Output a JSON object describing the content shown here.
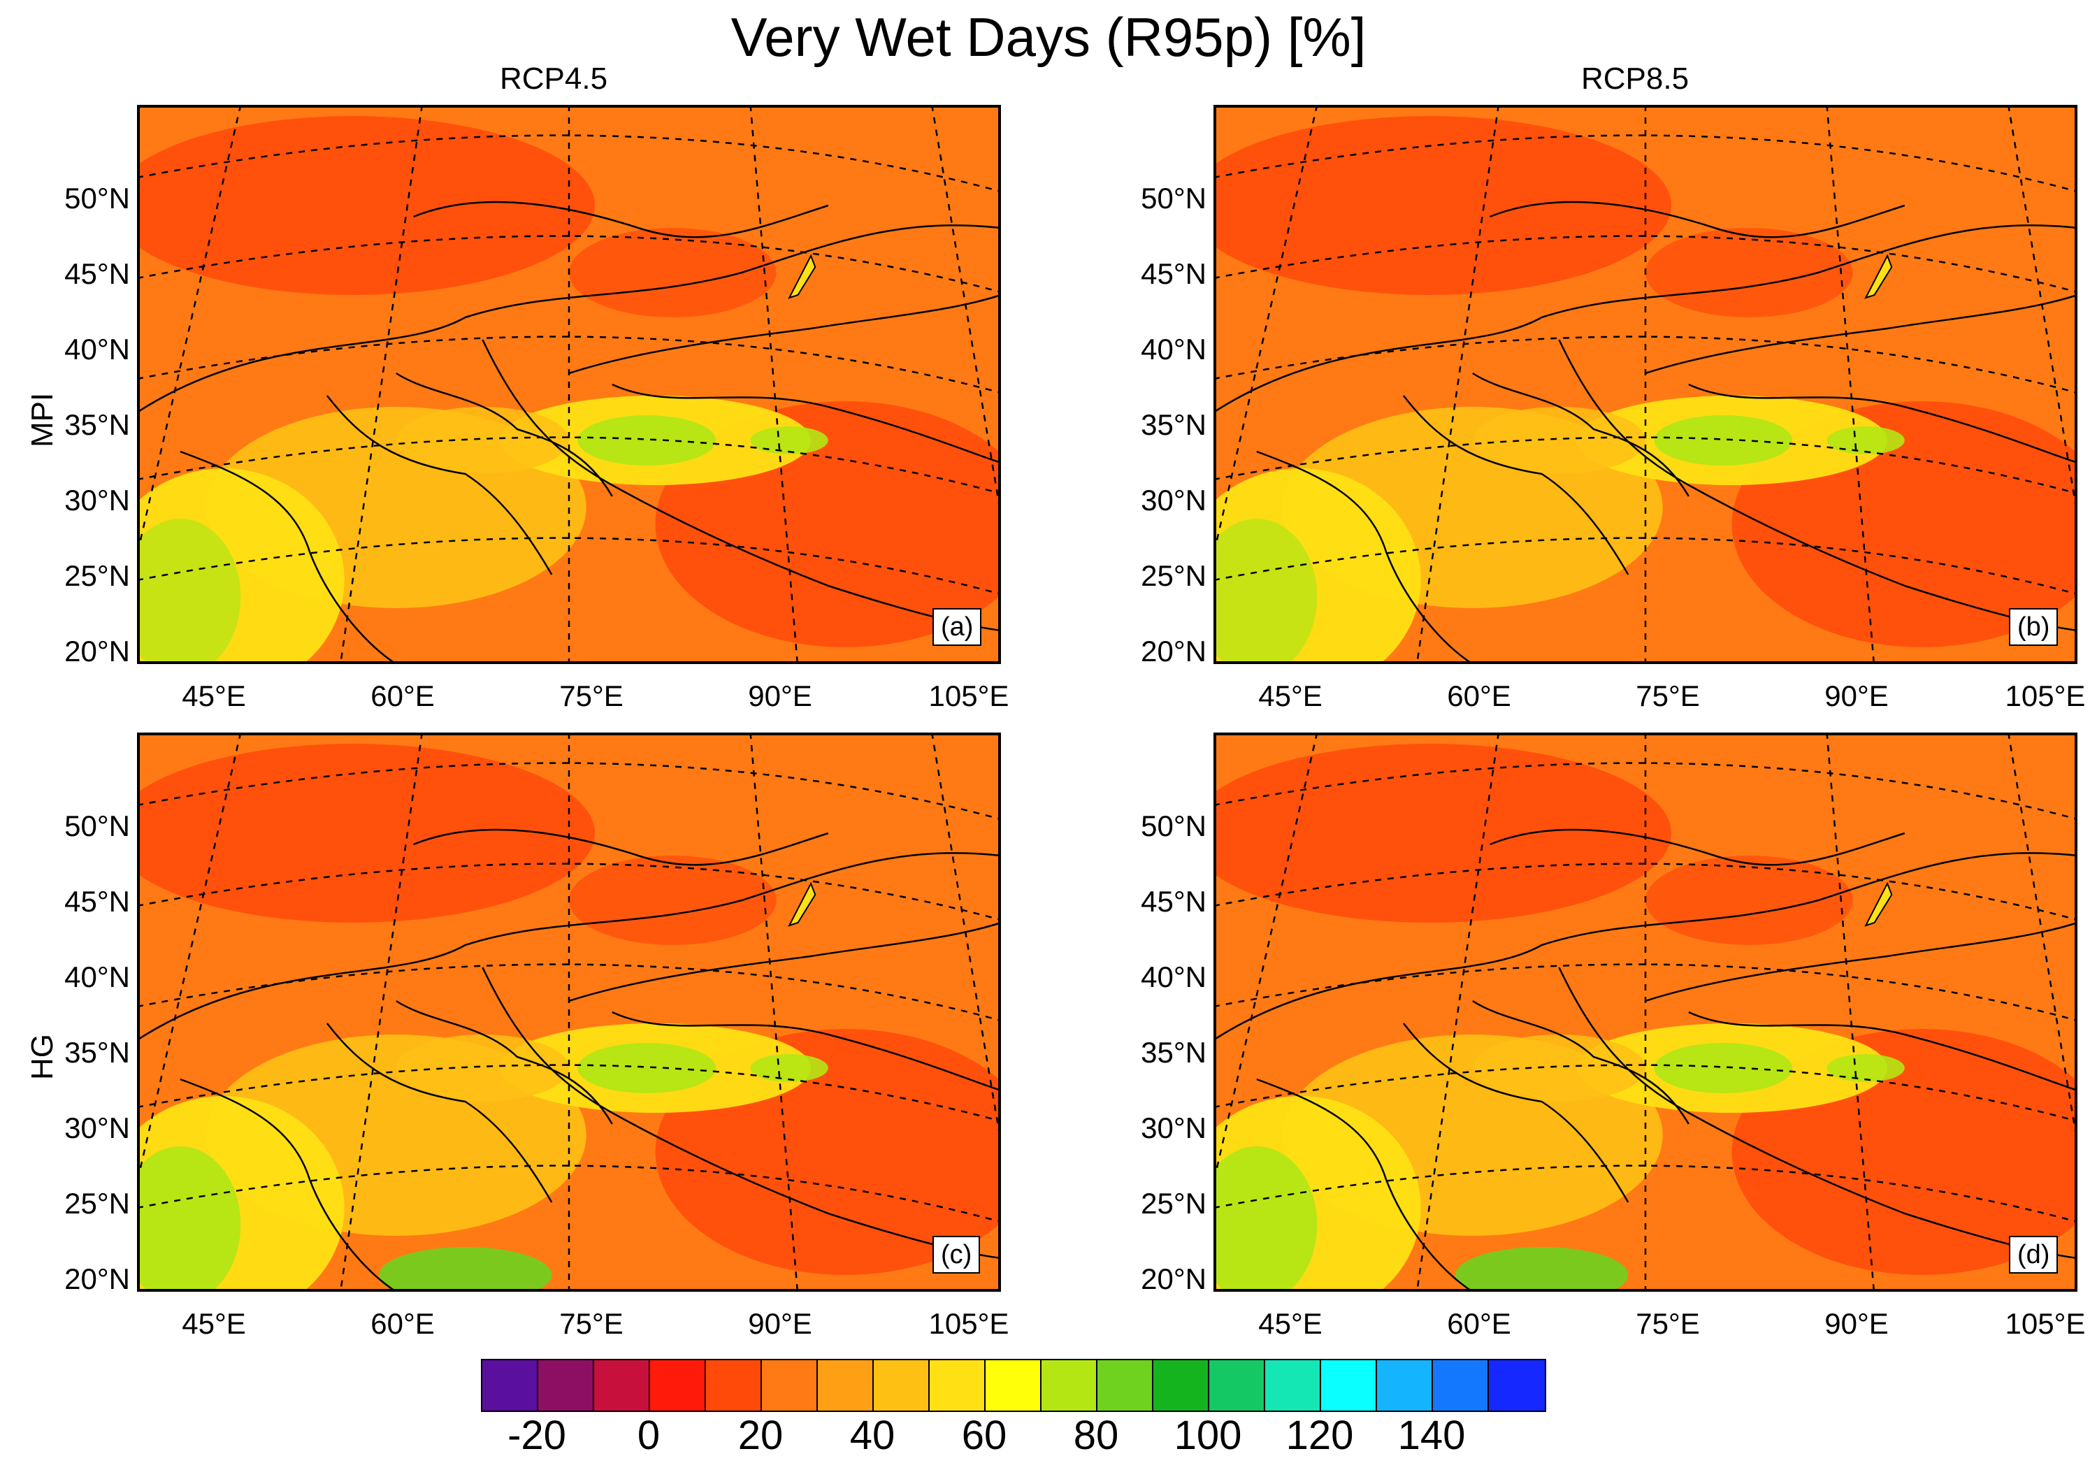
{
  "title": "Very Wet Days (R95p) [%]",
  "column_titles": [
    "RCP4.5",
    "RCP8.5"
  ],
  "row_titles": [
    "MPI",
    "HG"
  ],
  "panels": [
    {
      "label": "(a)",
      "row": "MPI",
      "scenario": "RCP4.5"
    },
    {
      "label": "(b)",
      "row": "MPI",
      "scenario": "RCP8.5"
    },
    {
      "label": "(c)",
      "row": "HG",
      "scenario": "RCP4.5"
    },
    {
      "label": "(d)",
      "row": "HG",
      "scenario": "RCP8.5"
    }
  ],
  "lat_labels": [
    "50°N",
    "45°N",
    "40°N",
    "35°N",
    "30°N",
    "25°N",
    "20°N"
  ],
  "lon_labels": [
    "45°E",
    "60°E",
    "75°E",
    "90°E",
    "105°E"
  ],
  "colorbar": {
    "colors": [
      "#5a0f9e",
      "#8c0f64",
      "#c8103c",
      "#ff1a0a",
      "#ff4a0a",
      "#ff7a14",
      "#ffa014",
      "#ffc014",
      "#ffe014",
      "#ffff0a",
      "#b4e614",
      "#6ed21e",
      "#14b41e",
      "#14c864",
      "#14e6b4",
      "#0affff",
      "#14b4ff",
      "#1478ff",
      "#1428ff"
    ],
    "tick_labels": [
      "-20",
      "0",
      "20",
      "40",
      "60",
      "80",
      "100",
      "120",
      "140"
    ]
  }
}
